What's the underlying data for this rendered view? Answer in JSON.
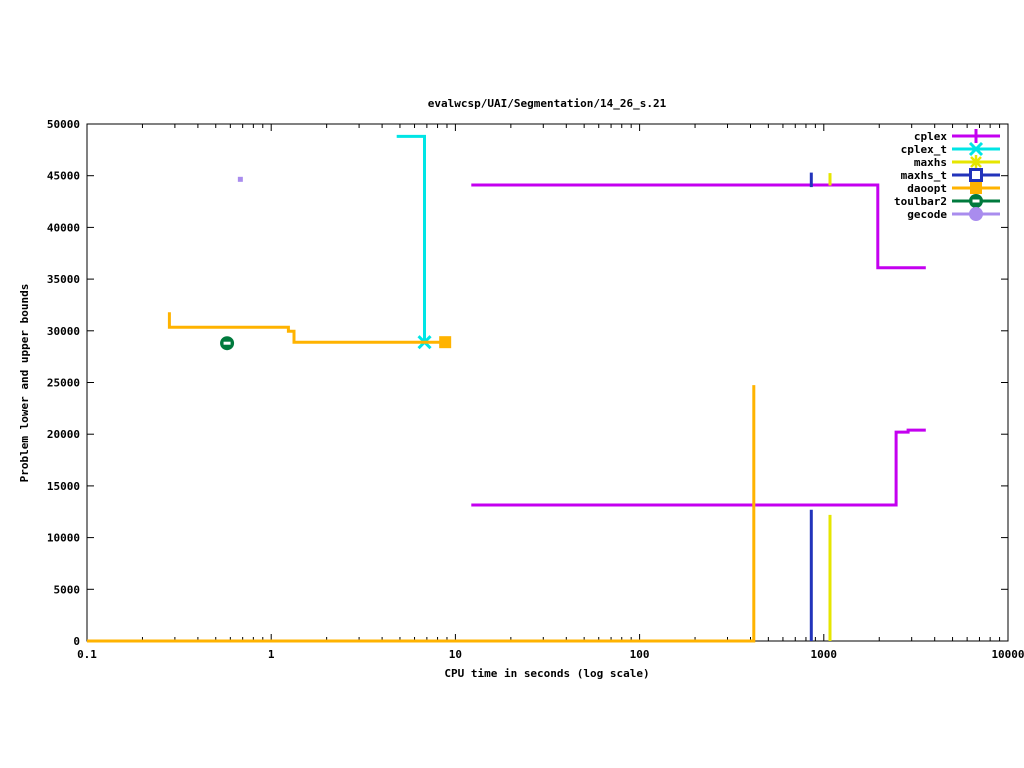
{
  "page": {
    "background": "#ffffff",
    "border_color": "#000000"
  },
  "chart_data": {
    "type": "line",
    "title": "evalwcsp/UAI/Segmentation/14_26_s.21",
    "xlabel": "CPU time in seconds (log scale)",
    "ylabel": "Problem lower and upper bounds",
    "x_scale": "log",
    "xlim": [
      0.1,
      10000
    ],
    "ylim": [
      0,
      50000
    ],
    "x_ticks": [
      0.1,
      1,
      10,
      100,
      1000,
      10000
    ],
    "x_tick_labels": [
      "0.1",
      "1",
      "10",
      "100",
      "1000",
      "10000"
    ],
    "y_ticks": [
      0,
      5000,
      10000,
      15000,
      20000,
      25000,
      30000,
      35000,
      40000,
      45000,
      50000
    ],
    "y_tick_labels": [
      "0",
      "5000",
      "10000",
      "15000",
      "20000",
      "25000",
      "30000",
      "35000",
      "40000",
      "45000",
      "50000"
    ],
    "grid": false,
    "legend_position": "top-right",
    "series": [
      {
        "name": "cplex",
        "color": "#c400f0",
        "marker": "plus",
        "segments": [
          [
            [
              12.2,
              44100
            ],
            [
              1964,
              44100
            ],
            [
              1964,
              36100
            ],
            [
              3580,
              36100
            ]
          ],
          [
            [
              12.2,
              13150
            ],
            [
              2470,
              13150
            ],
            [
              2470,
              20200
            ],
            [
              2870,
              20200
            ],
            [
              2870,
              20400
            ],
            [
              3580,
              20400
            ]
          ]
        ],
        "points": []
      },
      {
        "name": "cplex_t",
        "color": "#00e5e5",
        "marker": "x",
        "segments": [
          [
            [
              4.8,
              48800
            ],
            [
              6.8,
              48800
            ],
            [
              6.8,
              28900
            ]
          ]
        ],
        "points": [
          [
            6.8,
            28900
          ]
        ]
      },
      {
        "name": "maxhs",
        "color": "#e6e600",
        "marker": "asterisk",
        "segments": [
          [
            [
              1080,
              45250
            ],
            [
              1080,
              44050
            ]
          ],
          [
            [
              1080,
              12200
            ],
            [
              1080,
              0
            ]
          ]
        ],
        "points": []
      },
      {
        "name": "maxhs_t",
        "color": "#2233bb",
        "marker": "open-square",
        "segments": [
          [
            [
              855,
              45300
            ],
            [
              855,
              43900
            ]
          ],
          [
            [
              855,
              12700
            ],
            [
              855,
              0
            ]
          ]
        ],
        "points": []
      },
      {
        "name": "daoopt",
        "color": "#ffb300",
        "marker": "filled-square",
        "segments": [
          [
            [
              0.28,
              31800
            ],
            [
              0.28,
              30350
            ],
            [
              1.24,
              30350
            ],
            [
              1.24,
              29950
            ],
            [
              1.33,
              29950
            ],
            [
              1.33,
              28900
            ],
            [
              8.8,
              28900
            ]
          ],
          [
            [
              0.1,
              0
            ],
            [
              417,
              0
            ],
            [
              417,
              24750
            ]
          ]
        ],
        "points": [
          [
            8.8,
            28900
          ]
        ]
      },
      {
        "name": "toulbar2",
        "color": "#007a3d",
        "marker": "circle-dash",
        "segments": [],
        "points": [
          [
            0.576,
            28800
          ]
        ]
      },
      {
        "name": "gecode",
        "color": "#a98cee",
        "marker": "small-dot",
        "segments": [],
        "points": [
          [
            0.68,
            44650
          ]
        ]
      }
    ]
  }
}
